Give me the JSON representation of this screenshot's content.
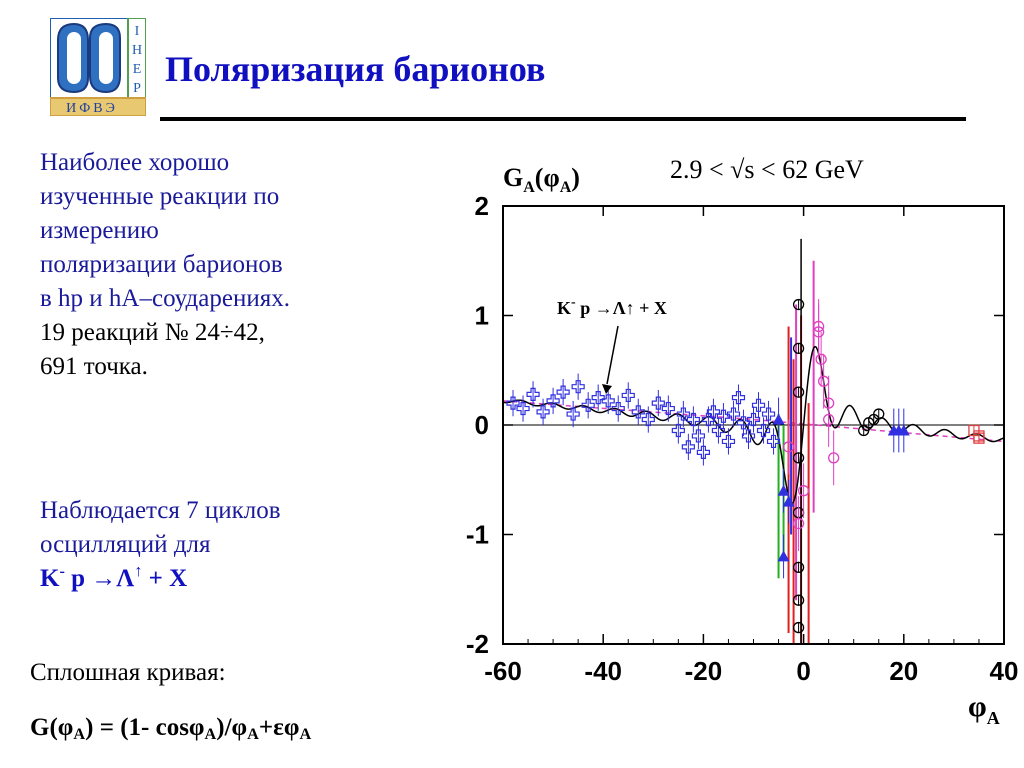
{
  "logo": {
    "side_letters": [
      "I",
      "H",
      "E",
      "P"
    ],
    "bottom_text": "ИФВЭ",
    "colors": {
      "frame": "#2060b0",
      "side": "#50a050",
      "bottom": "#d0a040"
    }
  },
  "title": "Поляризация барионов",
  "left_text": {
    "para1_lines": [
      "Наиболее хорошо",
      "изученные реакции по",
      "измерению",
      "поляризации барионов",
      "в hp  и hA–соударениях."
    ],
    "para1_dark_lines": [
      "19 реакций № 24÷42,",
      "691 точка."
    ],
    "para2_lines": [
      "Наблюдается 7 циклов",
      "осцилляций для"
    ],
    "reaction": {
      "k": "K",
      "minus": "-",
      "rest": " p →Λ",
      "arrow": "↑",
      "tail": " + X"
    },
    "curve_label": "Сплошная кривая:",
    "formula": {
      "g": "G(φ",
      "a1": "A",
      "mid": ") = (1- cosφ",
      "a2": "A",
      "mid2": ")/φ",
      "a3": "A",
      "tail": "+εφ",
      "a4": "A"
    }
  },
  "chart_data": {
    "type": "scatter",
    "ylabel": {
      "g": "G",
      "sub": "A",
      "mid": "(φ",
      "sub2": "A",
      "end": ")"
    },
    "xlabel": {
      "phi": "φ",
      "sub": "A"
    },
    "energy_label": "2.9 < √s < 62 GeV",
    "annotation": {
      "k": "K",
      "sup": "-",
      "rest": " p →Λ↑ + X"
    },
    "xlim": [
      -60,
      40
    ],
    "ylim": [
      -2,
      2
    ],
    "xticks": [
      "-60",
      "-40",
      "-20",
      "0",
      "20",
      "40"
    ],
    "yticks": [
      "2",
      "1",
      "0",
      "-1",
      "-2"
    ],
    "xtick_values": [
      -60,
      -40,
      -20,
      0,
      20,
      40
    ],
    "ytick_values": [
      2,
      1,
      0,
      -1,
      -2
    ],
    "eps": -0.004,
    "colors": {
      "data": "#3030e0",
      "curve": "#000000",
      "dashed": "#e040c0",
      "red": "#e02020",
      "green": "#20b020",
      "black_pts": "#000000",
      "square": "#e04040",
      "magenta": "#e040c0"
    },
    "series": [
      {
        "name": "",
        "marker": "cross",
        "points": [
          [
            -58,
            0.2
          ],
          [
            -56,
            0.15
          ],
          [
            -54,
            0.28
          ],
          [
            -52,
            0.12
          ],
          [
            -50,
            0.22
          ],
          [
            -48,
            0.3
          ],
          [
            -46,
            0.1
          ],
          [
            -45,
            0.35
          ],
          [
            -43,
            0.18
          ],
          [
            -41,
            0.25
          ],
          [
            -39,
            0.22
          ],
          [
            -37,
            0.15
          ],
          [
            -35,
            0.27
          ],
          [
            -33,
            0.12
          ],
          [
            -31,
            0.05
          ],
          [
            -29,
            0.2
          ],
          [
            -27,
            0.15
          ],
          [
            -25,
            -0.05
          ],
          [
            -24,
            0.1
          ],
          [
            -23,
            -0.2
          ],
          [
            -22,
            0.05
          ],
          [
            -21,
            -0.1
          ],
          [
            -20,
            -0.25
          ],
          [
            -19,
            0.05
          ],
          [
            -18,
            0.12
          ],
          [
            -17,
            -0.05
          ],
          [
            -16,
            0.08
          ],
          [
            -15,
            -0.15
          ],
          [
            -14,
            0.1
          ],
          [
            -13,
            0.25
          ],
          [
            -12,
            0.02
          ],
          [
            -11,
            -0.1
          ],
          [
            -10,
            0.05
          ],
          [
            -9,
            0.18
          ],
          [
            -8,
            -0.05
          ],
          [
            -7,
            0.1
          ],
          [
            -6,
            -0.15
          ]
        ],
        "err": 0.12
      },
      {
        "name": "",
        "marker": "circle",
        "points": [
          [
            -1,
            1.1
          ],
          [
            -1,
            0.7
          ],
          [
            -1,
            0.3
          ],
          [
            -1,
            -0.3
          ],
          [
            -1,
            -0.8
          ],
          [
            -1,
            -1.3
          ],
          [
            -1,
            -1.6
          ],
          [
            -1,
            -1.85
          ],
          [
            12,
            -0.05
          ],
          [
            13,
            0.02
          ],
          [
            14,
            0.05
          ],
          [
            15,
            0.1
          ]
        ],
        "err": 0.05
      },
      {
        "name": "",
        "marker": "circle-magenta",
        "points": [
          [
            3,
            0.9
          ],
          [
            3,
            0.85
          ],
          [
            3.5,
            0.6
          ],
          [
            4,
            0.4
          ],
          [
            5,
            0.2
          ],
          [
            5,
            0.05
          ],
          [
            6,
            -0.3
          ],
          [
            0,
            -0.6
          ],
          [
            -1,
            -0.9
          ],
          [
            -3,
            -0.2
          ]
        ],
        "err": 0.25
      },
      {
        "name": "",
        "marker": "triangle",
        "points": [
          [
            -4,
            -0.6
          ],
          [
            -5,
            0.05
          ],
          [
            -3,
            -0.7
          ],
          [
            -4,
            -1.2
          ],
          [
            18,
            -0.05
          ],
          [
            19,
            -0.05
          ],
          [
            20,
            -0.05
          ]
        ],
        "err": 0.2
      },
      {
        "name": "",
        "marker": "square",
        "points": [
          [
            34,
            -0.05
          ],
          [
            35,
            -0.1
          ],
          [
            35,
            -0.12
          ]
        ],
        "err": 0.05
      }
    ],
    "dashed_line": [
      [
        -60,
        0.22
      ],
      [
        -10,
        0.05
      ],
      [
        40,
        -0.15
      ]
    ]
  }
}
